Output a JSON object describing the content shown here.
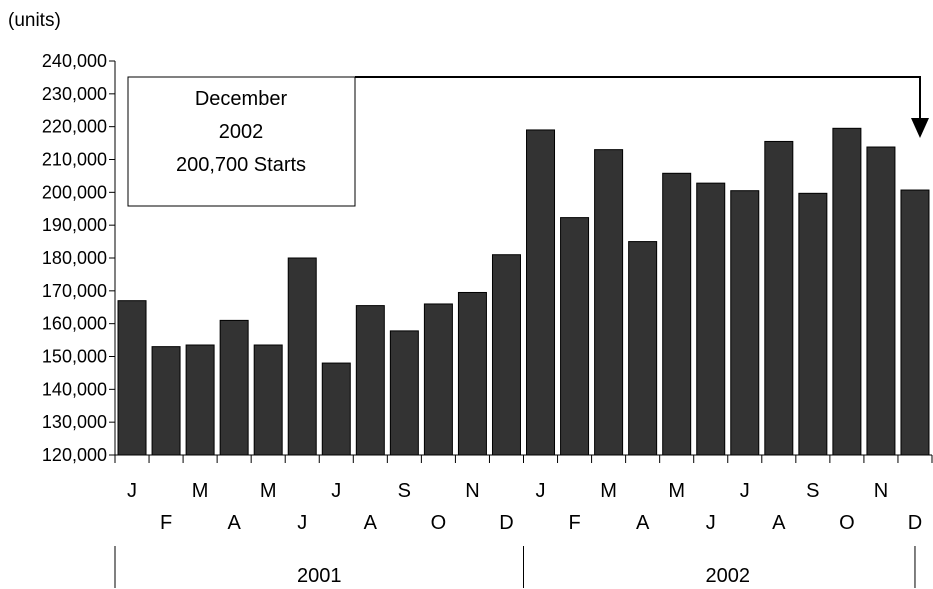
{
  "units_label": "(units)",
  "callout": {
    "line1": "December",
    "line2": "2002",
    "line3": "200,700 Starts"
  },
  "year_labels": [
    "2001",
    "2002"
  ],
  "chart_data": {
    "type": "bar",
    "categories": [
      "J",
      "F",
      "M",
      "A",
      "M",
      "J",
      "J",
      "A",
      "S",
      "O",
      "N",
      "D",
      "J",
      "F",
      "M",
      "A",
      "M",
      "J",
      "J",
      "A",
      "S",
      "O",
      "N",
      "D"
    ],
    "values": [
      167000,
      153000,
      153500,
      161000,
      153500,
      180000,
      148000,
      165500,
      157800,
      166000,
      169500,
      181000,
      219000,
      192300,
      213000,
      185000,
      205800,
      202800,
      200500,
      215500,
      199700,
      219500,
      213800,
      200700
    ],
    "ylim": [
      120000,
      240000
    ],
    "yticks": [
      120000,
      130000,
      140000,
      150000,
      160000,
      170000,
      180000,
      190000,
      200000,
      210000,
      220000,
      230000,
      240000
    ],
    "ytick_labels": [
      "120,000",
      "130,000",
      "140,000",
      "150,000",
      "160,000",
      "170,000",
      "180,000",
      "190,000",
      "200,000",
      "210,000",
      "220,000",
      "230,000",
      "240,000"
    ],
    "ylabel": "(units)",
    "xlabel": "",
    "bar_color": "#333333",
    "grid": false
  }
}
